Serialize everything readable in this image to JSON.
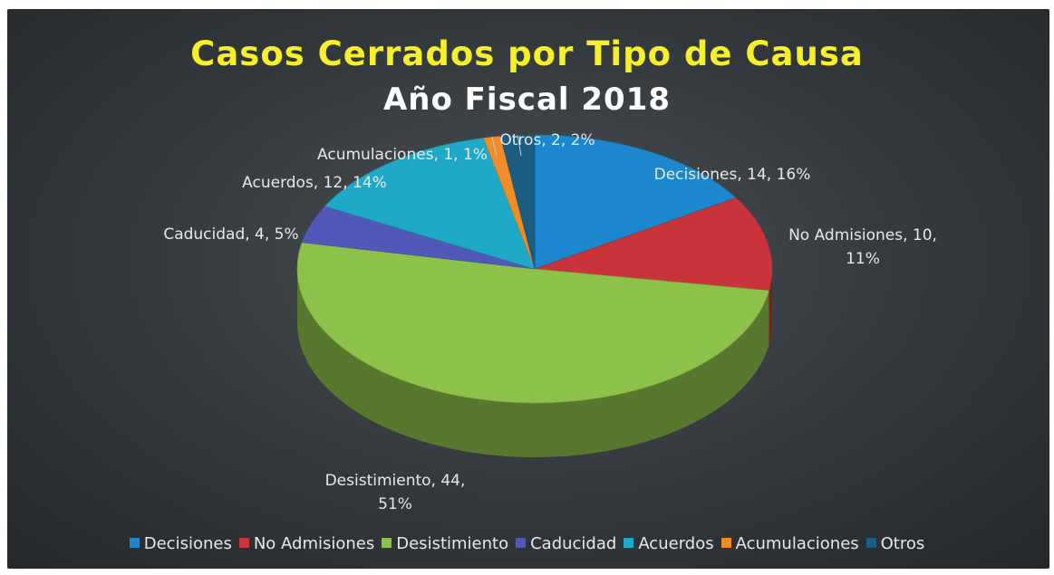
{
  "chart_data": {
    "type": "pie",
    "title": "Casos Cerrados por Tipo de Causa",
    "subtitle": "Año Fiscal 2018",
    "three_d": true,
    "legend_position": "bottom",
    "series": [
      {
        "name": "Decisiones",
        "value": 14,
        "percent": "16%",
        "color": "#1a87cf"
      },
      {
        "name": "No Admisiones",
        "value": 10,
        "percent": "11%",
        "color": "#c8343a"
      },
      {
        "name": "Desistimiento",
        "value": 44,
        "percent": "51%",
        "color": "#8cc24a"
      },
      {
        "name": "Caducidad",
        "value": 4,
        "percent": "5%",
        "color": "#5058b8"
      },
      {
        "name": "Acuerdos",
        "value": 12,
        "percent": "14%",
        "color": "#1fa9c7"
      },
      {
        "name": "Acumulaciones",
        "value": 1,
        "percent": "1%",
        "color": "#f28c28"
      },
      {
        "name": "Otros",
        "value": 2,
        "percent": "2%",
        "color": "#1b5d80"
      }
    ],
    "data_labels": [
      {
        "line1": "Decisiones, 14, 16%",
        "line2": ""
      },
      {
        "line1": "No Admisiones, 10,",
        "line2": "11%"
      },
      {
        "line1": "Desistimiento, 44,",
        "line2": "51%"
      },
      {
        "line1": "Caducidad, 4, 5%",
        "line2": ""
      },
      {
        "line1": "Acuerdos, 12, 14%",
        "line2": ""
      },
      {
        "line1": "Acumulaciones, 1, 1%",
        "line2": ""
      },
      {
        "line1": "Otros, 2, 2%",
        "line2": ""
      }
    ]
  }
}
